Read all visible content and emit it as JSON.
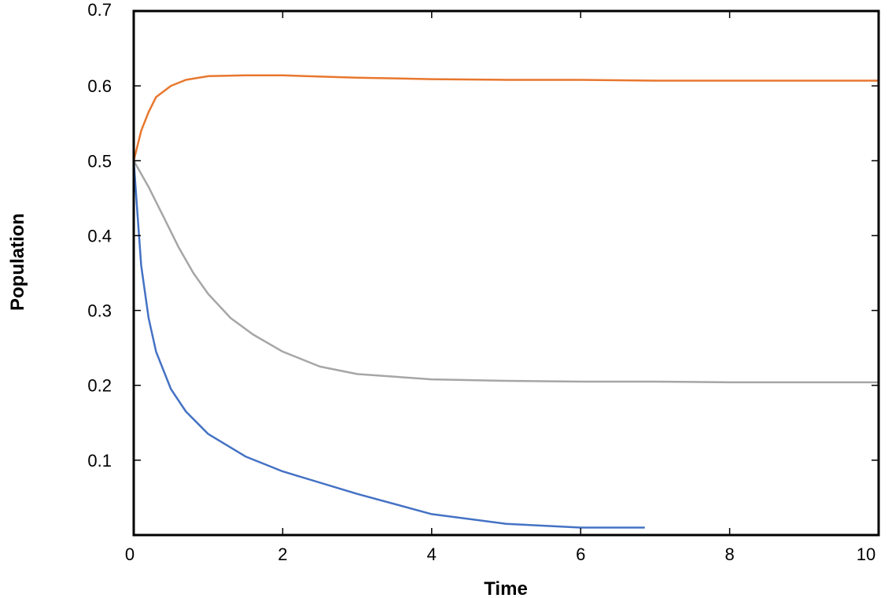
{
  "chart_data": {
    "type": "line",
    "title": "",
    "xlabel": "Time",
    "ylabel": "Population",
    "xlim": [
      0,
      10
    ],
    "ylim": [
      0,
      0.7
    ],
    "xticks": [
      {
        "value": 0,
        "label": "0"
      },
      {
        "value": 2,
        "label": "2"
      },
      {
        "value": 4,
        "label": "4"
      },
      {
        "value": 6,
        "label": "6"
      },
      {
        "value": 8,
        "label": "8"
      },
      {
        "value": 10,
        "label": "10"
      }
    ],
    "yticks": [
      {
        "value": 0.1,
        "label": "0.1"
      },
      {
        "value": 0.2,
        "label": "0.2"
      },
      {
        "value": 0.3,
        "label": "0.3"
      },
      {
        "value": 0.4,
        "label": "0.4"
      },
      {
        "value": 0.5,
        "label": "0.5"
      },
      {
        "value": 0.6,
        "label": "0.6"
      },
      {
        "value": 0.7,
        "label": "0.7"
      }
    ],
    "grid": false,
    "legend": "none",
    "series": [
      {
        "color": "#E8772E",
        "x": [
          0,
          0.1,
          0.2,
          0.3,
          0.5,
          0.7,
          1.0,
          1.5,
          2.0,
          3.0,
          4.0,
          5.0,
          6.0,
          7.0,
          8.0,
          9.0,
          10.0
        ],
        "y": [
          0.5,
          0.54,
          0.565,
          0.585,
          0.6,
          0.608,
          0.613,
          0.614,
          0.614,
          0.611,
          0.609,
          0.608,
          0.608,
          0.607,
          0.607,
          0.607,
          0.607
        ]
      },
      {
        "color": "#A6A6A6",
        "x": [
          0,
          0.2,
          0.4,
          0.6,
          0.8,
          1.0,
          1.3,
          1.6,
          2.0,
          2.5,
          3.0,
          4.0,
          5.0,
          6.0,
          7.0,
          8.0,
          9.0,
          10.0
        ],
        "y": [
          0.5,
          0.465,
          0.425,
          0.385,
          0.35,
          0.322,
          0.29,
          0.268,
          0.245,
          0.225,
          0.215,
          0.208,
          0.206,
          0.205,
          0.205,
          0.204,
          0.204,
          0.204
        ]
      },
      {
        "color": "#4472C4",
        "x": [
          0,
          0.05,
          0.1,
          0.2,
          0.3,
          0.5,
          0.7,
          1.0,
          1.5,
          2.0,
          3.0,
          4.0,
          5.0,
          6.0,
          6.85
        ],
        "y": [
          0.5,
          0.43,
          0.36,
          0.29,
          0.245,
          0.195,
          0.165,
          0.135,
          0.105,
          0.085,
          0.055,
          0.028,
          0.015,
          0.01,
          0.01
        ]
      }
    ]
  }
}
